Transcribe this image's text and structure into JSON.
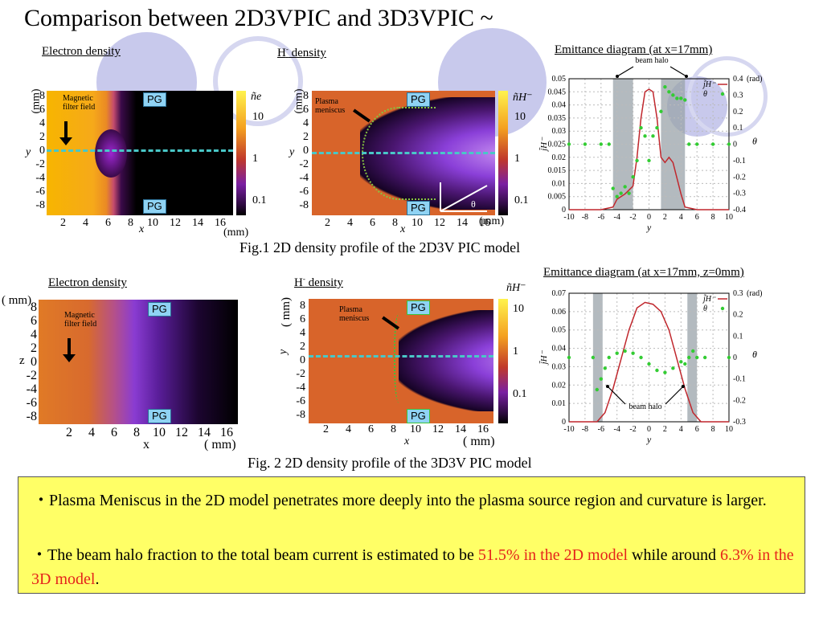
{
  "slide": {
    "title": "Comparison between 2D3VPIC and 3D3VPIC ~"
  },
  "row1": {
    "electron_label": "Electron density",
    "hminus_label": "H",
    "hminus_sup": "-",
    "hminus_rest": " density",
    "emittance_label": "Emittance diagram (at x=17mm)",
    "caption": "Fig.1 2D density profile of the 2D3V PIC model",
    "electron_panel": {
      "y_unit": "(mm)",
      "y_var": "y",
      "y_ticks": [
        "8",
        "6",
        "4",
        "2",
        "0",
        "-2",
        "-4",
        "-6",
        "-8"
      ],
      "x_ticks": [
        "2",
        "4",
        "6",
        "8",
        "10",
        "12",
        "14",
        "16"
      ],
      "x_var": "x",
      "x_unit": "(mm)",
      "pg_top": "PG",
      "pg_bottom": "PG",
      "note": "Magnetic filter field",
      "cbar_label": "ñe",
      "cbar_ticks": [
        "10",
        "1",
        "0.1"
      ]
    },
    "hminus_panel": {
      "y_unit": "(mm)",
      "y_var": "y",
      "y_ticks": [
        "8",
        "6",
        "4",
        "2",
        "0",
        "-2",
        "-4",
        "-6",
        "-8"
      ],
      "x_ticks": [
        "2",
        "4",
        "6",
        "8",
        "10",
        "12",
        "14",
        "16"
      ],
      "x_var": "x",
      "x_unit": "(mm)",
      "pg_top": "PG",
      "pg_bottom": "PG",
      "note": "Plasma meniscus",
      "theta": "θ",
      "cbar_label": "ñH⁻",
      "cbar_ticks": [
        "10",
        "1",
        "0.1"
      ]
    },
    "emittance": {
      "beam_halo": "beam halo",
      "y_left_ticks": [
        "0.05",
        "0.045",
        "0.04",
        "0.035",
        "0.03",
        "0.025",
        "0.02",
        "0.015",
        "0.01",
        "0.005",
        "0"
      ],
      "y_right_ticks": [
        "0.4",
        "0.3",
        "0.2",
        "0.1",
        "0",
        "-0.1",
        "-0.2",
        "-0.3",
        "-0.4"
      ],
      "right_unit": "(rad)",
      "x_ticks": [
        "-10",
        "-8",
        "-6",
        "-4",
        "-2",
        "0",
        "2",
        "4",
        "6",
        "8",
        "10"
      ],
      "x_var": "y",
      "left_var": "j̃H⁻",
      "right_var": "θ",
      "legend": [
        "j̃H⁻",
        "θ"
      ]
    }
  },
  "row2": {
    "electron_label": "Electron density",
    "hminus_label": "H",
    "hminus_sup": "-",
    "hminus_rest": " density",
    "emittance_label": "Emittance diagram (at x=17mm, z=0mm)",
    "caption": "Fig. 2 2D density profile of the 3D3V PIC model",
    "electron_panel": {
      "y_unit": "( mm)",
      "y_var": "z",
      "y_ticks": [
        "8",
        "6",
        "4",
        "2",
        "0",
        "-2",
        "-4",
        "-6",
        "-8"
      ],
      "x_ticks": [
        "2",
        "4",
        "6",
        "8",
        "10",
        "12",
        "14",
        "16"
      ],
      "x_var": "x",
      "x_unit": "( mm)",
      "pg_top": "PG",
      "pg_bottom": "PG",
      "note": "Magnetic filter field"
    },
    "hminus_panel": {
      "y_unit": "( mm)",
      "y_var": "y",
      "y_ticks": [
        "8",
        "6",
        "4",
        "2",
        "0",
        "-2",
        "-4",
        "-6",
        "-8"
      ],
      "x_ticks": [
        "2",
        "4",
        "6",
        "8",
        "10",
        "12",
        "14",
        "16"
      ],
      "x_var": "x",
      "x_unit": "( mm)",
      "pg_top": "PG",
      "pg_bottom": "PG",
      "note": "Plasma meniscus",
      "cbar_label": "ñH⁻",
      "cbar_ticks": [
        "10",
        "1",
        "0.1"
      ]
    },
    "emittance": {
      "beam_halo": "beam halo",
      "y_left_ticks": [
        "0.07",
        "0.06",
        "0.05",
        "0.04",
        "0.03",
        "0.02",
        "0.01",
        "0"
      ],
      "y_right_ticks": [
        "0.3",
        "0.2",
        "0.1",
        "0",
        "-0.1",
        "-0.2",
        "-0.3"
      ],
      "right_unit": "(rad)",
      "x_ticks": [
        "-10",
        "-8",
        "-6",
        "-4",
        "-2",
        "0",
        "2",
        "4",
        "6",
        "8",
        "10"
      ],
      "x_var": "y",
      "left_var": "j̃H⁻",
      "right_var": "θ",
      "legend": [
        "j̃H⁻",
        "θ"
      ]
    }
  },
  "summary": {
    "bullet1": "・Plasma Meniscus in the 2D model penetrates more deeply into the plasma source region and curvature is larger.",
    "bullet2_a": "・The beam halo fraction to the total beam current is estimated to be ",
    "bullet2_b": "51.5% in the 2D model",
    "bullet2_c": " while around ",
    "bullet2_d": "6.3% in the 3D model",
    "bullet2_e": ".",
    "highlight_color": "#e5231b"
  },
  "chart_data": [
    {
      "type": "line",
      "title": "Emittance diagram (at x=17mm)",
      "xlabel": "y",
      "ylabel": "j̃H⁻",
      "ylabel_right": "θ (rad)",
      "xlim": [
        -10,
        10
      ],
      "ylim": [
        0,
        0.05
      ],
      "ylim_right": [
        -0.4,
        0.4
      ],
      "shaded_regions": [
        [
          -4.5,
          -2
        ],
        [
          1.5,
          4.5
        ]
      ],
      "series": [
        {
          "name": "j̃H⁻",
          "axis": "left",
          "color": "#c0272d",
          "x": [
            -10,
            -6,
            -4.5,
            -4,
            -3,
            -2,
            -1.5,
            -1,
            -0.5,
            0,
            0.5,
            1,
            1.5,
            2,
            2.5,
            3,
            4,
            4.5,
            6,
            10
          ],
          "y": [
            0,
            0,
            0.001,
            0.004,
            0.006,
            0.009,
            0.02,
            0.035,
            0.045,
            0.046,
            0.045,
            0.035,
            0.02,
            0.018,
            0.02,
            0.018,
            0.006,
            0.001,
            0,
            0
          ]
        },
        {
          "name": "θ",
          "axis": "right",
          "color": "#33cc33",
          "mode": "markers",
          "x": [
            -10,
            -8,
            -6,
            -5,
            -4.5,
            -4,
            -3.5,
            -3,
            -2.5,
            -2,
            -1.5,
            -1,
            -0.5,
            0,
            0.5,
            1,
            1.5,
            2,
            2.5,
            3,
            3.5,
            4,
            4.5,
            5,
            6,
            8,
            10
          ],
          "y": [
            0,
            0,
            0,
            0,
            -0.27,
            -0.32,
            -0.3,
            -0.26,
            -0.3,
            -0.2,
            -0.1,
            0.1,
            0.05,
            -0.1,
            0.05,
            0.1,
            0.2,
            0.35,
            0.32,
            0.3,
            0.28,
            0.28,
            0.27,
            0,
            0,
            0,
            0
          ]
        }
      ]
    },
    {
      "type": "line",
      "title": "Emittance diagram (at x=17mm, z=0mm)",
      "xlabel": "y",
      "ylabel": "j̃H⁻",
      "ylabel_right": "θ (rad)",
      "xlim": [
        -10,
        10
      ],
      "ylim": [
        0,
        0.07
      ],
      "ylim_right": [
        -0.3,
        0.3
      ],
      "shaded_regions": [
        [
          -7,
          -5.8
        ],
        [
          4.8,
          6
        ]
      ],
      "series": [
        {
          "name": "j̃H⁻",
          "axis": "left",
          "color": "#c0272d",
          "x": [
            -10,
            -6.5,
            -5.5,
            -4.5,
            -3.5,
            -2.5,
            -1.5,
            -0.5,
            0.5,
            1.5,
            2.5,
            3.5,
            4.5,
            5.5,
            6.5,
            10
          ],
          "y": [
            0,
            0,
            0.005,
            0.018,
            0.034,
            0.05,
            0.062,
            0.065,
            0.064,
            0.06,
            0.05,
            0.034,
            0.018,
            0.005,
            0,
            0
          ]
        },
        {
          "name": "θ",
          "axis": "right",
          "color": "#33cc33",
          "mode": "markers",
          "x": [
            -10,
            -7,
            -6.5,
            -6,
            -5.5,
            -5,
            -4,
            -3,
            -2,
            -1,
            0,
            1,
            2,
            3,
            4,
            4.5,
            5,
            5.5,
            6,
            7,
            10
          ],
          "y": [
            0,
            0,
            -0.15,
            -0.1,
            -0.05,
            0.0,
            0.02,
            0.03,
            0.02,
            0.0,
            -0.03,
            -0.06,
            -0.07,
            -0.05,
            -0.02,
            -0.03,
            0.0,
            0.03,
            0.0,
            0,
            0
          ]
        }
      ]
    }
  ]
}
